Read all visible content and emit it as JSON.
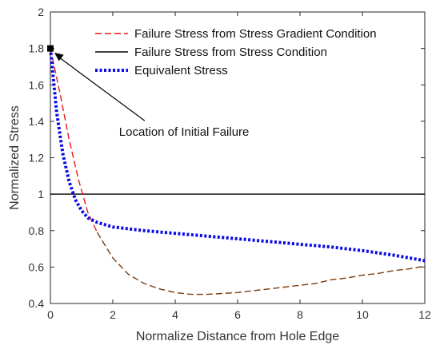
{
  "chart_data": {
    "type": "line",
    "title": "",
    "xlabel": "Normalize Distance from Hole Edge",
    "ylabel": "Normalized Stress",
    "xlim": [
      0,
      12
    ],
    "ylim": [
      0.4,
      2.0
    ],
    "xticks": [
      0,
      2,
      4,
      6,
      8,
      10,
      12
    ],
    "xtick_labels": [
      "0",
      "2",
      "4",
      "6",
      "8",
      "10",
      "12"
    ],
    "yticks": [
      0.4,
      0.6,
      0.8,
      1.0,
      1.2,
      1.4,
      1.6,
      1.8,
      2.0
    ],
    "ytick_labels": [
      "0.4",
      "0.6",
      "0.8",
      "1",
      "1.2",
      "1.4",
      "1.6",
      "1.8",
      "2"
    ],
    "grid": false,
    "legend_position": "top-left",
    "series": [
      {
        "name": "Failure Stress from Stress Gradient Condition",
        "color": "#e8161b",
        "color_secondary": "#7a3b0c",
        "style": "dashed",
        "x": [
          0,
          0.3,
          0.6,
          0.9,
          1.2,
          1.5,
          2,
          2.5,
          3,
          3.5,
          4,
          4.5,
          5,
          5.5,
          6,
          6.5,
          7,
          7.5,
          8,
          8.5,
          9,
          9.5,
          10,
          10.5,
          11,
          11.5,
          12
        ],
        "y": [
          1.8,
          1.56,
          1.3,
          1.08,
          0.9,
          0.79,
          0.65,
          0.56,
          0.51,
          0.48,
          0.46,
          0.45,
          0.45,
          0.455,
          0.46,
          0.47,
          0.48,
          0.49,
          0.5,
          0.51,
          0.53,
          0.54,
          0.555,
          0.565,
          0.58,
          0.59,
          0.605
        ]
      },
      {
        "name": "Failure Stress from Stress Condition",
        "color": "#000000",
        "style": "solid",
        "x": [
          0,
          12
        ],
        "y": [
          1.0,
          1.0
        ]
      },
      {
        "name": "Equivalent Stress",
        "color": "#0a0ae6",
        "style": "dotted",
        "x": [
          0,
          0.2,
          0.4,
          0.6,
          0.8,
          1.0,
          1.2,
          1.5,
          2,
          2.5,
          3,
          4,
          5,
          6,
          7,
          8,
          9,
          10,
          11,
          12
        ],
        "y": [
          1.8,
          1.45,
          1.22,
          1.07,
          0.97,
          0.91,
          0.87,
          0.845,
          0.82,
          0.81,
          0.8,
          0.785,
          0.77,
          0.755,
          0.74,
          0.725,
          0.71,
          0.69,
          0.665,
          0.635
        ]
      }
    ],
    "markers": [
      {
        "label": "Initial Failure Point",
        "x": 0,
        "y": 1.8,
        "color": "#000000"
      }
    ],
    "annotations": [
      {
        "text": "Location of Initial Failure",
        "x": 2.2,
        "y": 1.32,
        "arrow_to": [
          0.05,
          1.79
        ]
      }
    ]
  }
}
